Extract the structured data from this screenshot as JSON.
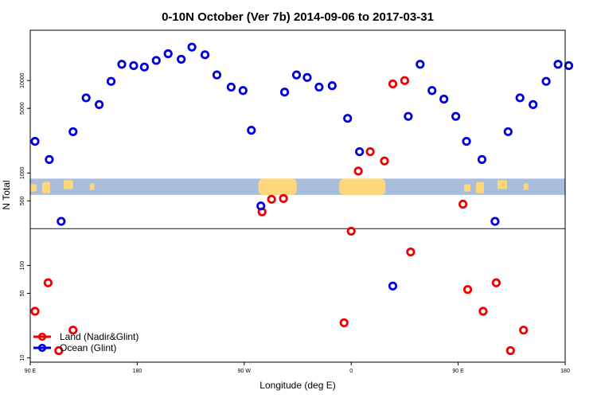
{
  "chart_data": {
    "type": "scatter",
    "title": "0-10N October (Ver 7b)   2014-09-06 to 2017-03-31",
    "xlabel": "Longitude (deg E)",
    "ylabel": "N Total",
    "x_ticks": [
      {
        "value": 90,
        "label": "90 E"
      },
      {
        "value": 180,
        "label": "180"
      },
      {
        "value": 270,
        "label": "90 W"
      },
      {
        "value": 360,
        "label": "0"
      },
      {
        "value": 450,
        "label": "90 E"
      },
      {
        "value": 540,
        "label": "180"
      }
    ],
    "xlim": [
      90,
      540
    ],
    "y_scale": "log",
    "ylim": [
      9,
      35000
    ],
    "y_ticks": [
      {
        "value": 10,
        "label": "10"
      },
      {
        "value": 50,
        "label": "50"
      },
      {
        "value": 100,
        "label": "100"
      },
      {
        "value": 500,
        "label": "500"
      },
      {
        "value": 1000,
        "label": "1000"
      },
      {
        "value": 5000,
        "label": "5000"
      },
      {
        "value": 10000,
        "label": "10000"
      }
    ],
    "reference_line_y": 250,
    "map_band": {
      "y_bottom": 580,
      "y_top": 870,
      "ocean_color": "#a8bedc",
      "land_color": "#fed77a"
    },
    "legend": {
      "position": "bottom-left"
    },
    "series": [
      {
        "name": "Land (Nadir&Glint)",
        "color": "#ee0000",
        "points": [
          [
            94,
            32
          ],
          [
            105,
            65
          ],
          [
            114,
            12
          ],
          [
            126,
            20
          ],
          [
            285,
            380
          ],
          [
            293,
            520
          ],
          [
            303,
            530
          ],
          [
            354,
            24
          ],
          [
            360,
            235
          ],
          [
            366,
            1050
          ],
          [
            376,
            1700
          ],
          [
            388,
            1350
          ],
          [
            395,
            9200
          ],
          [
            405,
            10000
          ],
          [
            410,
            140
          ],
          [
            454,
            460
          ],
          [
            458,
            55
          ],
          [
            471,
            32
          ],
          [
            482,
            65
          ],
          [
            494,
            12
          ],
          [
            505,
            20
          ]
        ]
      },
      {
        "name": "Ocean (Glint)",
        "color": "#0000dd",
        "points": [
          [
            94,
            2200
          ],
          [
            106,
            1400
          ],
          [
            116,
            300
          ],
          [
            126,
            2800
          ],
          [
            137,
            6500
          ],
          [
            148,
            5500
          ],
          [
            158,
            9800
          ],
          [
            167,
            15000
          ],
          [
            177,
            14500
          ],
          [
            186,
            14000
          ],
          [
            196,
            16500
          ],
          [
            206,
            19500
          ],
          [
            217,
            17000
          ],
          [
            226,
            23000
          ],
          [
            237,
            19000
          ],
          [
            247,
            11500
          ],
          [
            259,
            8500
          ],
          [
            269,
            7800
          ],
          [
            276,
            2900
          ],
          [
            284,
            440
          ],
          [
            304,
            7500
          ],
          [
            314,
            11500
          ],
          [
            323,
            10800
          ],
          [
            333,
            8500
          ],
          [
            344,
            8800
          ],
          [
            357,
            3900
          ],
          [
            367,
            1700
          ],
          [
            395,
            60
          ],
          [
            408,
            4100
          ],
          [
            418,
            15000
          ],
          [
            428,
            7800
          ],
          [
            438,
            6300
          ],
          [
            448,
            4100
          ],
          [
            457,
            2200
          ],
          [
            470,
            1400
          ],
          [
            481,
            300
          ],
          [
            492,
            2800
          ],
          [
            502,
            6500
          ],
          [
            513,
            5500
          ],
          [
            524,
            9800
          ],
          [
            534,
            15000
          ],
          [
            543,
            14500
          ]
        ]
      }
    ]
  }
}
